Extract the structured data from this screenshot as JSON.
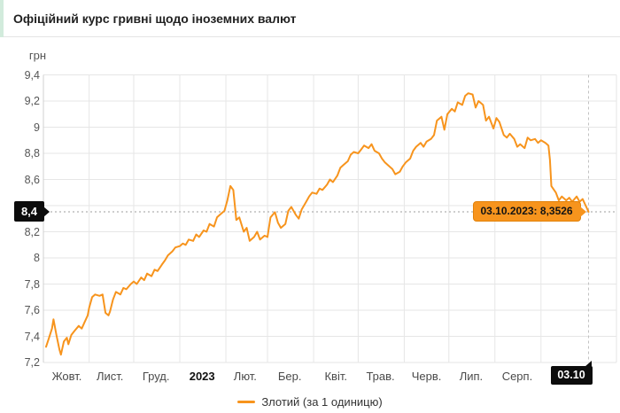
{
  "header": {
    "title": "Офіційний курс гривні щодо іноземних валют"
  },
  "chart": {
    "unit_label": "грн"
  },
  "chart_data": {
    "type": "line",
    "title": "Офіційний курс гривні щодо іноземних валют",
    "ylabel": "грн",
    "ylim": [
      7.2,
      9.4
    ],
    "y_tick_step": 0.2,
    "grid": true,
    "legend_position": "bottom-center",
    "x_range": [
      "2022-10-03",
      "2023-10-03"
    ],
    "colors": {
      "series": "#f7941d",
      "grid": "#e6e6e6",
      "axis": "#d0d0d0",
      "dotted_marker": "#9e9e9e",
      "dashed_marker": "#c2c2c2",
      "badge_bg": "#0c0c0c",
      "tooltip_bg": "#f7941d",
      "tooltip_border": "#e2820a"
    },
    "y_ticks": [
      {
        "label": "9,4",
        "value": 9.4
      },
      {
        "label": "9,2",
        "value": 9.2
      },
      {
        "label": "9",
        "value": 9.0
      },
      {
        "label": "8,8",
        "value": 8.8
      },
      {
        "label": "8,6",
        "value": 8.6
      },
      {
        "label": "8,4",
        "value": 8.4,
        "replaced_by_badge": true
      },
      {
        "label": "8,2",
        "value": 8.2
      },
      {
        "label": "8",
        "value": 8.0
      },
      {
        "label": "7,8",
        "value": 7.8
      },
      {
        "label": "7,6",
        "value": 7.6
      },
      {
        "label": "7,4",
        "value": 7.4
      },
      {
        "label": "7,2",
        "value": 7.2
      }
    ],
    "x_ticks": [
      {
        "label": "Жовт.",
        "date": "2022-10-17"
      },
      {
        "label": "Лист.",
        "date": "2022-11-15"
      },
      {
        "label": "Груд.",
        "date": "2022-12-16"
      },
      {
        "label": "2023",
        "date": "2023-01-16",
        "bold": true
      },
      {
        "label": "Лют.",
        "date": "2023-02-14"
      },
      {
        "label": "Бер.",
        "date": "2023-03-16"
      },
      {
        "label": "Квіт.",
        "date": "2023-04-16"
      },
      {
        "label": "Трав.",
        "date": "2023-05-16"
      },
      {
        "label": "Черв.",
        "date": "2023-06-16"
      },
      {
        "label": "Лип.",
        "date": "2023-07-16"
      },
      {
        "label": "Серп.",
        "date": "2023-08-16"
      }
    ],
    "x_gridline_dates": [
      "2022-11-01",
      "2022-12-01",
      "2023-01-01",
      "2023-02-01",
      "2023-03-01",
      "2023-04-01",
      "2023-05-01",
      "2023-06-01",
      "2023-07-01",
      "2023-08-01",
      "2023-09-01"
    ],
    "marker": {
      "date": "2023-10-03",
      "value": 8.3526,
      "tooltip": "03.10.2023: 8,3526",
      "y_axis_label": "8,4",
      "x_axis_label": "03.10"
    },
    "series": [
      {
        "name": "Злотий (за 1 одиницю)",
        "color": "#f7941d",
        "points": [
          [
            "2022-10-03",
            7.32
          ],
          [
            "2022-10-05",
            7.39
          ],
          [
            "2022-10-07",
            7.46
          ],
          [
            "2022-10-08",
            7.53
          ],
          [
            "2022-10-10",
            7.41
          ],
          [
            "2022-10-12",
            7.3
          ],
          [
            "2022-10-13",
            7.26
          ],
          [
            "2022-10-15",
            7.36
          ],
          [
            "2022-10-17",
            7.39
          ],
          [
            "2022-10-18",
            7.34
          ],
          [
            "2022-10-20",
            7.41
          ],
          [
            "2022-10-22",
            7.44
          ],
          [
            "2022-10-25",
            7.48
          ],
          [
            "2022-10-27",
            7.46
          ],
          [
            "2022-10-29",
            7.51
          ],
          [
            "2022-10-31",
            7.56
          ],
          [
            "2022-11-01",
            7.62
          ],
          [
            "2022-11-03",
            7.7
          ],
          [
            "2022-11-05",
            7.72
          ],
          [
            "2022-11-08",
            7.71
          ],
          [
            "2022-11-10",
            7.72
          ],
          [
            "2022-11-12",
            7.58
          ],
          [
            "2022-11-14",
            7.56
          ],
          [
            "2022-11-15",
            7.59
          ],
          [
            "2022-11-17",
            7.68
          ],
          [
            "2022-11-19",
            7.74
          ],
          [
            "2022-11-22",
            7.72
          ],
          [
            "2022-11-24",
            7.77
          ],
          [
            "2022-11-26",
            7.76
          ],
          [
            "2022-11-29",
            7.8
          ],
          [
            "2022-12-01",
            7.82
          ],
          [
            "2022-12-03",
            7.8
          ],
          [
            "2022-12-06",
            7.85
          ],
          [
            "2022-12-08",
            7.83
          ],
          [
            "2022-12-10",
            7.88
          ],
          [
            "2022-12-13",
            7.86
          ],
          [
            "2022-12-15",
            7.91
          ],
          [
            "2022-12-17",
            7.9
          ],
          [
            "2022-12-20",
            7.95
          ],
          [
            "2022-12-22",
            7.98
          ],
          [
            "2022-12-24",
            8.02
          ],
          [
            "2022-12-27",
            8.05
          ],
          [
            "2022-12-29",
            8.08
          ],
          [
            "2023-01-01",
            8.09
          ],
          [
            "2023-01-03",
            8.11
          ],
          [
            "2023-01-05",
            8.1
          ],
          [
            "2023-01-07",
            8.14
          ],
          [
            "2023-01-10",
            8.13
          ],
          [
            "2023-01-12",
            8.18
          ],
          [
            "2023-01-14",
            8.16
          ],
          [
            "2023-01-17",
            8.21
          ],
          [
            "2023-01-19",
            8.2
          ],
          [
            "2023-01-21",
            8.26
          ],
          [
            "2023-01-24",
            8.24
          ],
          [
            "2023-01-26",
            8.31
          ],
          [
            "2023-01-28",
            8.33
          ],
          [
            "2023-01-31",
            8.36
          ],
          [
            "2023-02-02",
            8.44
          ],
          [
            "2023-02-04",
            8.55
          ],
          [
            "2023-02-06",
            8.52
          ],
          [
            "2023-02-08",
            8.29
          ],
          [
            "2023-02-10",
            8.31
          ],
          [
            "2023-02-13",
            8.2
          ],
          [
            "2023-02-15",
            8.23
          ],
          [
            "2023-02-17",
            8.13
          ],
          [
            "2023-02-20",
            8.16
          ],
          [
            "2023-02-22",
            8.2
          ],
          [
            "2023-02-24",
            8.14
          ],
          [
            "2023-02-27",
            8.17
          ],
          [
            "2023-03-01",
            8.16
          ],
          [
            "2023-03-03",
            8.31
          ],
          [
            "2023-03-06",
            8.35
          ],
          [
            "2023-03-08",
            8.27
          ],
          [
            "2023-03-10",
            8.23
          ],
          [
            "2023-03-13",
            8.26
          ],
          [
            "2023-03-15",
            8.36
          ],
          [
            "2023-03-17",
            8.39
          ],
          [
            "2023-03-20",
            8.33
          ],
          [
            "2023-03-22",
            8.3
          ],
          [
            "2023-03-24",
            8.37
          ],
          [
            "2023-03-27",
            8.43
          ],
          [
            "2023-03-29",
            8.47
          ],
          [
            "2023-03-31",
            8.5
          ],
          [
            "2023-04-03",
            8.49
          ],
          [
            "2023-04-05",
            8.53
          ],
          [
            "2023-04-07",
            8.52
          ],
          [
            "2023-04-10",
            8.56
          ],
          [
            "2023-04-12",
            8.6
          ],
          [
            "2023-04-14",
            8.58
          ],
          [
            "2023-04-17",
            8.63
          ],
          [
            "2023-04-19",
            8.69
          ],
          [
            "2023-04-21",
            8.71
          ],
          [
            "2023-04-24",
            8.74
          ],
          [
            "2023-04-26",
            8.79
          ],
          [
            "2023-04-28",
            8.81
          ],
          [
            "2023-05-01",
            8.8
          ],
          [
            "2023-05-03",
            8.83
          ],
          [
            "2023-05-05",
            8.86
          ],
          [
            "2023-05-08",
            8.84
          ],
          [
            "2023-05-10",
            8.87
          ],
          [
            "2023-05-12",
            8.82
          ],
          [
            "2023-05-15",
            8.8
          ],
          [
            "2023-05-17",
            8.76
          ],
          [
            "2023-05-19",
            8.73
          ],
          [
            "2023-05-22",
            8.7
          ],
          [
            "2023-05-24",
            8.68
          ],
          [
            "2023-05-26",
            8.64
          ],
          [
            "2023-05-29",
            8.66
          ],
          [
            "2023-05-31",
            8.7
          ],
          [
            "2023-06-02",
            8.73
          ],
          [
            "2023-06-05",
            8.76
          ],
          [
            "2023-06-07",
            8.82
          ],
          [
            "2023-06-09",
            8.85
          ],
          [
            "2023-06-12",
            8.88
          ],
          [
            "2023-06-14",
            8.85
          ],
          [
            "2023-06-16",
            8.89
          ],
          [
            "2023-06-19",
            8.91
          ],
          [
            "2023-06-21",
            8.94
          ],
          [
            "2023-06-23",
            9.05
          ],
          [
            "2023-06-26",
            9.08
          ],
          [
            "2023-06-28",
            8.98
          ],
          [
            "2023-06-30",
            9.1
          ],
          [
            "2023-07-03",
            9.14
          ],
          [
            "2023-07-05",
            9.12
          ],
          [
            "2023-07-07",
            9.19
          ],
          [
            "2023-07-10",
            9.17
          ],
          [
            "2023-07-12",
            9.24
          ],
          [
            "2023-07-14",
            9.26
          ],
          [
            "2023-07-17",
            9.25
          ],
          [
            "2023-07-19",
            9.15
          ],
          [
            "2023-07-21",
            9.2
          ],
          [
            "2023-07-24",
            9.17
          ],
          [
            "2023-07-26",
            9.05
          ],
          [
            "2023-07-28",
            9.08
          ],
          [
            "2023-07-31",
            8.99
          ],
          [
            "2023-08-02",
            9.07
          ],
          [
            "2023-08-04",
            9.04
          ],
          [
            "2023-08-07",
            8.94
          ],
          [
            "2023-08-09",
            8.92
          ],
          [
            "2023-08-11",
            8.95
          ],
          [
            "2023-08-14",
            8.91
          ],
          [
            "2023-08-16",
            8.85
          ],
          [
            "2023-08-18",
            8.87
          ],
          [
            "2023-08-21",
            8.84
          ],
          [
            "2023-08-23",
            8.92
          ],
          [
            "2023-08-25",
            8.9
          ],
          [
            "2023-08-28",
            8.91
          ],
          [
            "2023-08-30",
            8.88
          ],
          [
            "2023-09-01",
            8.9
          ],
          [
            "2023-09-04",
            8.88
          ],
          [
            "2023-09-06",
            8.86
          ],
          [
            "2023-09-07",
            8.75
          ],
          [
            "2023-09-08",
            8.55
          ],
          [
            "2023-09-11",
            8.5
          ],
          [
            "2023-09-13",
            8.44
          ],
          [
            "2023-09-15",
            8.47
          ],
          [
            "2023-09-18",
            8.44
          ],
          [
            "2023-09-20",
            8.46
          ],
          [
            "2023-09-22",
            8.43
          ],
          [
            "2023-09-25",
            8.47
          ],
          [
            "2023-09-27",
            8.43
          ],
          [
            "2023-09-29",
            8.45
          ],
          [
            "2023-10-03",
            8.3526
          ]
        ]
      }
    ]
  }
}
